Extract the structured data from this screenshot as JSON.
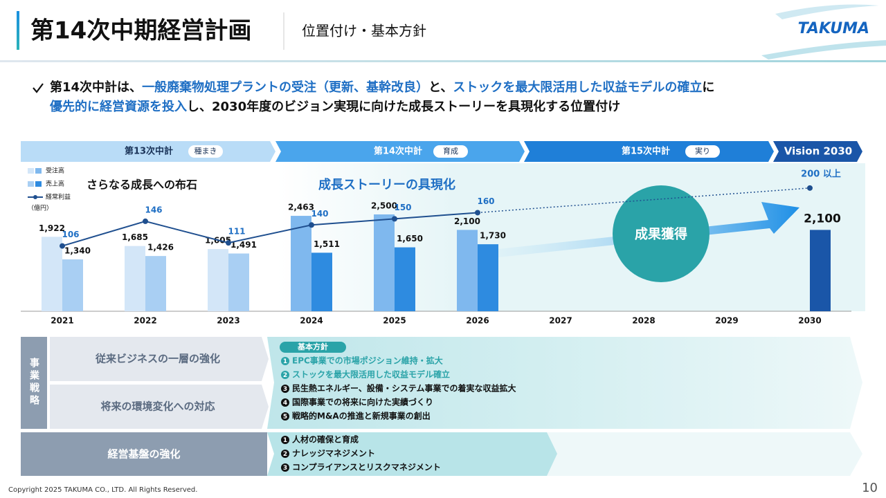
{
  "header": {
    "title": "第14次中期経営計画",
    "subtitle": "位置付け・基本方針",
    "logo": "TAKUMA"
  },
  "lead": {
    "line1": [
      "第14次中計は、",
      "一般廃棄物処理プラントの受注（更新、基幹改良）",
      "と、",
      "ストックを最大限活用した収益モデルの確立",
      "に"
    ],
    "line2": [
      "優先的に経営資源を投入",
      "し、2030年度のビジョン実現に向けた成長ストーリーを具現化する位置付け"
    ]
  },
  "phases": [
    {
      "name": "第13次中計",
      "tag": "種まき"
    },
    {
      "name": "第14次中計",
      "tag": "育成"
    },
    {
      "name": "第15次中計",
      "tag": "実り"
    },
    {
      "name": "Vision 2030"
    }
  ],
  "chart_data": {
    "type": "bar_line",
    "unit_label": "（億円）",
    "annotations": [
      "さらなる成長への布石",
      "成長ストーリーの具現化",
      "成果獲得"
    ],
    "categories": [
      "2021",
      "2022",
      "2023",
      "2024",
      "2025",
      "2026",
      "2027",
      "2028",
      "2029",
      "2030"
    ],
    "ylim": [
      0,
      3500
    ],
    "y2lim": [
      0,
      220
    ],
    "series": [
      {
        "name": "受注高",
        "type": "bar",
        "color": "#7fb8ee",
        "colors": [
          "#d3e6f8",
          "#d3e6f8",
          "#d3e6f8",
          "#7fb8ee",
          "#7fb8ee",
          "#7fb8ee",
          null,
          null,
          null,
          null
        ],
        "values": [
          1922,
          1685,
          1605,
          2463,
          2500,
          2100,
          null,
          null,
          null,
          null
        ],
        "value_labels": [
          "1,922",
          "1,685",
          "1,605",
          "2,463",
          "2,500",
          "2,100",
          null,
          null,
          null,
          null
        ]
      },
      {
        "name": "売上高",
        "type": "bar",
        "color": "#2e8be0",
        "colors": [
          "#a9cff3",
          "#a9cff3",
          "#a9cff3",
          "#2e8be0",
          "#2e8be0",
          "#2e8be0",
          null,
          null,
          null,
          "#1a56a8"
        ],
        "values": [
          1340,
          1426,
          1491,
          1511,
          1650,
          1730,
          null,
          null,
          null,
          2100
        ],
        "value_labels": [
          "1,340",
          "1,426",
          "1,491",
          "1,511",
          "1,650",
          "1,730",
          null,
          null,
          null,
          "2,100"
        ]
      },
      {
        "name": "経常利益",
        "type": "line",
        "axis": "y2",
        "color": "#1f4f8f",
        "values": [
          106,
          146,
          111,
          140,
          150,
          160,
          null,
          null,
          null,
          200
        ],
        "value_labels": [
          "106",
          "146",
          "111",
          "140",
          "150",
          "160",
          null,
          null,
          null,
          "200 以上"
        ]
      }
    ]
  },
  "strategy": {
    "label": "事業戦略",
    "rows": [
      "従来ビジネスの一層の強化",
      "将来の環境変化への対応"
    ],
    "policy_tag": "基本方針",
    "items": [
      {
        "no": "1",
        "text": "EPC事業での市場ポジション維持・拡大"
      },
      {
        "no": "2",
        "text": "ストックを最大限活用した収益モデル確立"
      },
      {
        "no": "3",
        "text": "民生熱エネルギー、設備・システム事業での着実な収益拡大"
      },
      {
        "no": "4",
        "text": "国際事業での将来に向けた実績づくり"
      },
      {
        "no": "5",
        "text": "戦略的M&Aの推進と新規事業の創出"
      }
    ]
  },
  "foundation": {
    "label": "経営基盤の強化",
    "items": [
      {
        "no": "1",
        "text": "人材の確保と育成"
      },
      {
        "no": "2",
        "text": "ナレッジマネジメント"
      },
      {
        "no": "3",
        "text": "コンプライアンスとリスクマネジメント"
      }
    ]
  },
  "footer": {
    "copyright": "Copyright  2025 TAKUMA CO., LTD.  All Rights Reserved.",
    "page": "10"
  }
}
